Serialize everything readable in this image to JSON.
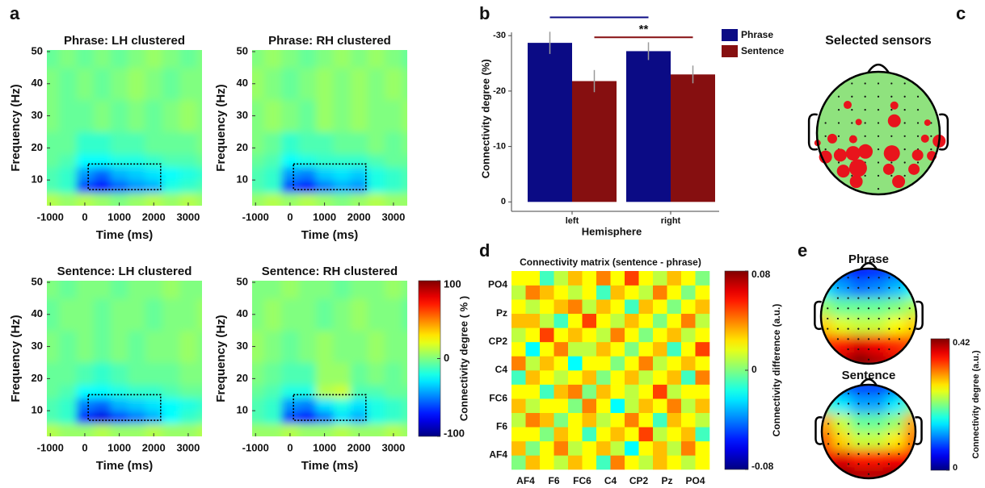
{
  "panel_labels": [
    "a",
    "b",
    "c",
    "d",
    "e"
  ],
  "chart_data": [
    {
      "type": "heatmap",
      "title": "Phrase: LH clustered",
      "xlabel": "Time (ms)",
      "ylabel": "Frequency (Hz)",
      "xlim": [
        -1100,
        3400
      ],
      "ylim": [
        2,
        50.5
      ],
      "xticks": [
        -1000,
        0,
        1000,
        2000,
        3000
      ],
      "yticks": [
        10,
        20,
        30,
        40,
        50
      ],
      "x": [
        -1000,
        -500,
        0,
        500,
        1000,
        1500,
        2000,
        2500,
        3000,
        3500
      ],
      "y": [
        4,
        8,
        12,
        16,
        20,
        30,
        40,
        50
      ],
      "values": [
        [
          10,
          5,
          10,
          5,
          0,
          5,
          10,
          5,
          10,
          5
        ],
        [
          -10,
          -15,
          -60,
          -75,
          -55,
          -45,
          -40,
          -20,
          -15,
          -10
        ],
        [
          -10,
          -15,
          -45,
          -55,
          -40,
          -35,
          -30,
          -25,
          -20,
          -15
        ],
        [
          -5,
          -10,
          -25,
          -25,
          -20,
          -20,
          -15,
          -10,
          -10,
          -5
        ],
        [
          -5,
          -5,
          -15,
          -15,
          -10,
          -10,
          -5,
          -5,
          -5,
          0
        ],
        [
          0,
          -5,
          -5,
          0,
          -5,
          0,
          -5,
          0,
          5,
          0
        ],
        [
          0,
          -5,
          0,
          -5,
          0,
          5,
          0,
          -5,
          0,
          0
        ],
        [
          -5,
          0,
          -5,
          0,
          -5,
          0,
          5,
          0,
          -5,
          0
        ]
      ],
      "box": {
        "x": [
          100,
          2200
        ],
        "y": [
          7,
          15
        ]
      }
    },
    {
      "type": "heatmap",
      "title": "Phrase: RH clustered",
      "xlabel": "Time (ms)",
      "ylabel": "Frequency (Hz)",
      "xlim": [
        -1100,
        3400
      ],
      "ylim": [
        2,
        50.5
      ],
      "xticks": [
        -1000,
        0,
        1000,
        2000,
        3000
      ],
      "yticks": [
        10,
        20,
        30,
        40,
        50
      ],
      "x": [
        -1000,
        -500,
        0,
        500,
        1000,
        1500,
        2000,
        2500,
        3000,
        3500
      ],
      "y": [
        4,
        8,
        12,
        16,
        20,
        30,
        40,
        50
      ],
      "values": [
        [
          5,
          10,
          5,
          10,
          5,
          0,
          5,
          10,
          5,
          5
        ],
        [
          -10,
          -15,
          -60,
          -70,
          -50,
          -40,
          -45,
          -20,
          -15,
          -10
        ],
        [
          -10,
          -15,
          -45,
          -50,
          -35,
          -30,
          -35,
          -20,
          -15,
          -10
        ],
        [
          -5,
          -10,
          -25,
          -20,
          -15,
          -15,
          -15,
          -10,
          -5,
          -5
        ],
        [
          0,
          -5,
          -15,
          -10,
          -10,
          -5,
          -5,
          0,
          -5,
          0
        ],
        [
          0,
          5,
          0,
          -5,
          5,
          0,
          5,
          0,
          0,
          5
        ],
        [
          5,
          0,
          -5,
          0,
          5,
          0,
          5,
          0,
          5,
          0
        ],
        [
          0,
          5,
          0,
          -5,
          0,
          5,
          0,
          5,
          0,
          -5
        ]
      ],
      "box": {
        "x": [
          100,
          2200
        ],
        "y": [
          7,
          15
        ]
      }
    },
    {
      "type": "heatmap",
      "title": "Sentence: LH clustered",
      "xlabel": "Time (ms)",
      "ylabel": "Frequency (Hz)",
      "xlim": [
        -1100,
        3400
      ],
      "ylim": [
        2,
        50.5
      ],
      "xticks": [
        -1000,
        0,
        1000,
        2000,
        3000
      ],
      "yticks": [
        10,
        20,
        30,
        40,
        50
      ],
      "x": [
        -1000,
        -500,
        0,
        500,
        1000,
        1500,
        2000,
        2500,
        3000,
        3500
      ],
      "y": [
        4,
        8,
        12,
        16,
        20,
        30,
        40,
        50
      ],
      "values": [
        [
          10,
          5,
          5,
          10,
          5,
          5,
          10,
          5,
          5,
          10
        ],
        [
          -10,
          -15,
          -65,
          -80,
          -60,
          -50,
          -40,
          -25,
          -15,
          -10
        ],
        [
          -10,
          -15,
          -50,
          -55,
          -40,
          -35,
          -30,
          -25,
          -20,
          -15
        ],
        [
          -5,
          -10,
          -25,
          -25,
          -20,
          -15,
          -15,
          -10,
          -5,
          -5
        ],
        [
          -5,
          -5,
          -10,
          -15,
          -10,
          -5,
          -5,
          -5,
          0,
          0
        ],
        [
          0,
          -5,
          0,
          -5,
          0,
          -5,
          0,
          0,
          5,
          0
        ],
        [
          -5,
          0,
          0,
          -5,
          0,
          0,
          -5,
          0,
          0,
          5
        ],
        [
          0,
          -5,
          0,
          0,
          -5,
          0,
          0,
          5,
          0,
          0
        ]
      ],
      "box": {
        "x": [
          100,
          2200
        ],
        "y": [
          7,
          15
        ]
      }
    },
    {
      "type": "heatmap",
      "title": "Sentence: RH clustered",
      "xlabel": "Time (ms)",
      "ylabel": "Frequency (Hz)",
      "xlim": [
        -1100,
        3400
      ],
      "ylim": [
        2,
        50.5
      ],
      "xticks": [
        -1000,
        0,
        1000,
        2000,
        3000
      ],
      "yticks": [
        10,
        20,
        30,
        40,
        50
      ],
      "x": [
        -1000,
        -500,
        0,
        500,
        1000,
        1500,
        2000,
        2500,
        3000,
        3500
      ],
      "y": [
        4,
        8,
        12,
        16,
        20,
        30,
        40,
        50
      ],
      "values": [
        [
          5,
          5,
          10,
          5,
          5,
          10,
          5,
          5,
          10,
          5
        ],
        [
          -10,
          -15,
          -60,
          -70,
          -50,
          -30,
          -40,
          -20,
          -15,
          -10
        ],
        [
          -10,
          -15,
          -45,
          -50,
          -30,
          -20,
          -30,
          -20,
          -15,
          -10
        ],
        [
          -5,
          -10,
          -20,
          -20,
          10,
          15,
          -10,
          -10,
          -5,
          -5
        ],
        [
          0,
          -5,
          -10,
          -10,
          5,
          5,
          -5,
          0,
          -5,
          0
        ],
        [
          5,
          0,
          -5,
          0,
          5,
          0,
          0,
          5,
          0,
          0
        ],
        [
          0,
          5,
          0,
          0,
          -5,
          0,
          5,
          0,
          0,
          -5
        ],
        [
          0,
          0,
          5,
          0,
          0,
          -5,
          0,
          0,
          5,
          0
        ]
      ],
      "box": {
        "x": [
          100,
          2200
        ],
        "y": [
          7,
          15
        ]
      }
    },
    {
      "type": "colorbar",
      "label": "Connectivity degree ( % )",
      "ylim": [
        -100,
        100
      ],
      "yticks": [
        100,
        0,
        -100
      ]
    },
    {
      "type": "bar",
      "categories": [
        "left",
        "right"
      ],
      "xlabel": "Hemisphere",
      "ylabel": "Connectivity degree (%)",
      "ylim": [
        1.7,
        -34
      ],
      "yticks": [
        -30,
        -20,
        -10,
        0
      ],
      "legend": "right",
      "series": [
        {
          "name": "Phrase",
          "color": "#0b0b85",
          "values": [
            -28.7,
            -27.2
          ],
          "errors": [
            2,
            1.6
          ]
        },
        {
          "name": "Sentence",
          "color": "#860f10",
          "values": [
            -21.8,
            -23
          ],
          "errors": [
            2,
            1.6
          ]
        }
      ],
      "significance": [
        {
          "series": 0,
          "level": -33.3
        },
        {
          "series": 1,
          "level": -29.7,
          "label": "**"
        }
      ]
    },
    {
      "type": "sensors",
      "title": "Selected sensors",
      "x": [
        -0.5,
        0.26,
        0.26,
        -0.32,
        0.8,
        -0.75,
        -0.99,
        -0.41,
        0.76,
        0.99,
        -0.86,
        -0.62,
        -0.41,
        -0.21,
        0.22,
        0.64,
        0.87,
        -0.57,
        -0.33,
        0.17,
        0.58,
        -0.36,
        0.33
      ],
      "y": [
        -0.46,
        -0.45,
        -0.2,
        -0.18,
        -0.17,
        0.09,
        0.16,
        0.1,
        0.09,
        0.13,
        0.39,
        0.36,
        0.33,
        0.3,
        0.33,
        0.36,
        0.37,
        0.62,
        0.57,
        0.59,
        0.59,
        0.79,
        0.79
      ],
      "sizes": [
        5,
        5,
        8,
        4,
        4,
        6,
        4,
        5,
        5,
        8,
        8,
        8,
        9,
        9,
        10,
        7,
        6,
        8,
        11,
        7,
        7,
        8,
        8
      ]
    },
    {
      "type": "matrix",
      "title": "Connectivity matrix (sentence - phrase)",
      "xlim": [
        0,
        14
      ],
      "ylim": [
        0,
        14
      ],
      "xticks": [
        {
          "value": 1,
          "label": "AF4"
        },
        {
          "value": 3,
          "label": "F6"
        },
        {
          "value": 5,
          "label": "FC6"
        },
        {
          "value": 7,
          "label": "C4"
        },
        {
          "value": 9,
          "label": "CP2"
        },
        {
          "value": 11,
          "label": "Pz"
        },
        {
          "value": 13,
          "label": "PO4"
        }
      ],
      "yticks": [
        {
          "value": 1,
          "label": "AF4"
        },
        {
          "value": 3,
          "label": "F6"
        },
        {
          "value": 5,
          "label": "FC6"
        },
        {
          "value": 7,
          "label": "C4"
        },
        {
          "value": 9,
          "label": "CP2"
        },
        {
          "value": 11,
          "label": "Pz"
        },
        {
          "value": 13,
          "label": "PO4"
        }
      ],
      "values": [
        [
          0,
          0.03,
          0.02,
          0.01,
          0.03,
          0.02,
          -0.01,
          0.04,
          0.02,
          0.01,
          0.03,
          0.02,
          0.01,
          0.02
        ],
        [
          0.03,
          0,
          0.02,
          0.04,
          0.01,
          0.02,
          0.03,
          0.01,
          -0.02,
          0.02,
          0.03,
          0.01,
          0.04,
          0.02
        ],
        [
          0.02,
          0.02,
          0,
          0.03,
          0.02,
          -0.01,
          0.02,
          0.03,
          0.02,
          0.05,
          0.01,
          0.02,
          0.03,
          -0.01
        ],
        [
          0.01,
          0.04,
          0.03,
          0,
          0.02,
          0.03,
          0.01,
          0.02,
          0.04,
          0.02,
          -0.01,
          0.03,
          0.02,
          0.01
        ],
        [
          0.03,
          0.01,
          0.02,
          0.02,
          0,
          0.04,
          0.02,
          -0.02,
          0.01,
          0.03,
          0.02,
          0.04,
          0.01,
          0.03
        ],
        [
          0.02,
          0.02,
          -0.01,
          0.03,
          0.04,
          0,
          0.03,
          0.02,
          0.01,
          0.02,
          0.05,
          0.01,
          0.02,
          0.02
        ],
        [
          -0.01,
          0.03,
          0.02,
          0.01,
          0.02,
          0.03,
          0,
          0.02,
          0.03,
          0.01,
          0.02,
          0.03,
          -0.01,
          0.04
        ],
        [
          0.04,
          0.01,
          0.03,
          0.02,
          -0.02,
          0.02,
          0.02,
          0,
          0.02,
          0.04,
          0.01,
          0.02,
          0.03,
          0.02
        ],
        [
          0.02,
          -0.02,
          0.02,
          0.04,
          0.01,
          0.01,
          0.03,
          0.02,
          0,
          0.02,
          0.03,
          -0.01,
          0.02,
          0.05
        ],
        [
          0.01,
          0.02,
          0.05,
          0.02,
          0.03,
          0.02,
          0.01,
          0.04,
          0.02,
          0,
          0.02,
          0.03,
          0.01,
          0.02
        ],
        [
          0.03,
          0.03,
          0.01,
          -0.01,
          0.02,
          0.05,
          0.02,
          0.01,
          0.03,
          0.02,
          0,
          0.02,
          0.04,
          0.01
        ],
        [
          0.02,
          0.01,
          0.02,
          0.03,
          0.04,
          0.01,
          0.03,
          0.02,
          -0.01,
          0.03,
          0.02,
          0,
          0.02,
          0.03
        ],
        [
          0.01,
          0.04,
          0.03,
          0.02,
          0.01,
          0.02,
          -0.01,
          0.03,
          0.02,
          0.01,
          0.04,
          0.02,
          0,
          0.02
        ],
        [
          0.02,
          0.02,
          -0.01,
          0.01,
          0.03,
          0.02,
          0.04,
          0.02,
          0.05,
          0.02,
          0.01,
          0.03,
          0.02,
          0
        ]
      ]
    },
    {
      "type": "colorbar",
      "label": "Connectivity difference (a.u.)",
      "ylim": [
        -0.08,
        0.08
      ],
      "yticks": [
        0.08,
        0,
        -0.08
      ]
    },
    {
      "type": "topomap",
      "title": "Phrase",
      "values": [
        [
          0.1,
          0.08,
          0.06,
          0.07,
          0.09,
          0.12
        ],
        [
          0.15,
          0.12,
          0.1,
          0.11,
          0.13,
          0.16
        ],
        [
          0.22,
          0.2,
          0.2,
          0.2,
          0.21,
          0.23
        ],
        [
          0.28,
          0.25,
          0.24,
          0.24,
          0.26,
          0.28
        ],
        [
          0.34,
          0.36,
          0.38,
          0.37,
          0.35,
          0.33
        ],
        [
          0.36,
          0.39,
          0.42,
          0.4,
          0.38,
          0.35
        ]
      ]
    },
    {
      "type": "topomap",
      "title": "Sentence",
      "values": [
        [
          0.12,
          0.1,
          0.08,
          0.08,
          0.1,
          0.14
        ],
        [
          0.18,
          0.15,
          0.12,
          0.12,
          0.15,
          0.2
        ],
        [
          0.3,
          0.24,
          0.2,
          0.2,
          0.22,
          0.3
        ],
        [
          0.33,
          0.28,
          0.24,
          0.24,
          0.27,
          0.32
        ],
        [
          0.37,
          0.38,
          0.36,
          0.36,
          0.37,
          0.36
        ],
        [
          0.39,
          0.42,
          0.4,
          0.4,
          0.41,
          0.38
        ]
      ]
    },
    {
      "type": "colorbar",
      "label": "Connectivity degree (a.u.)",
      "ylim": [
        0,
        0.42
      ],
      "yticks": [
        0.42,
        0
      ]
    }
  ]
}
